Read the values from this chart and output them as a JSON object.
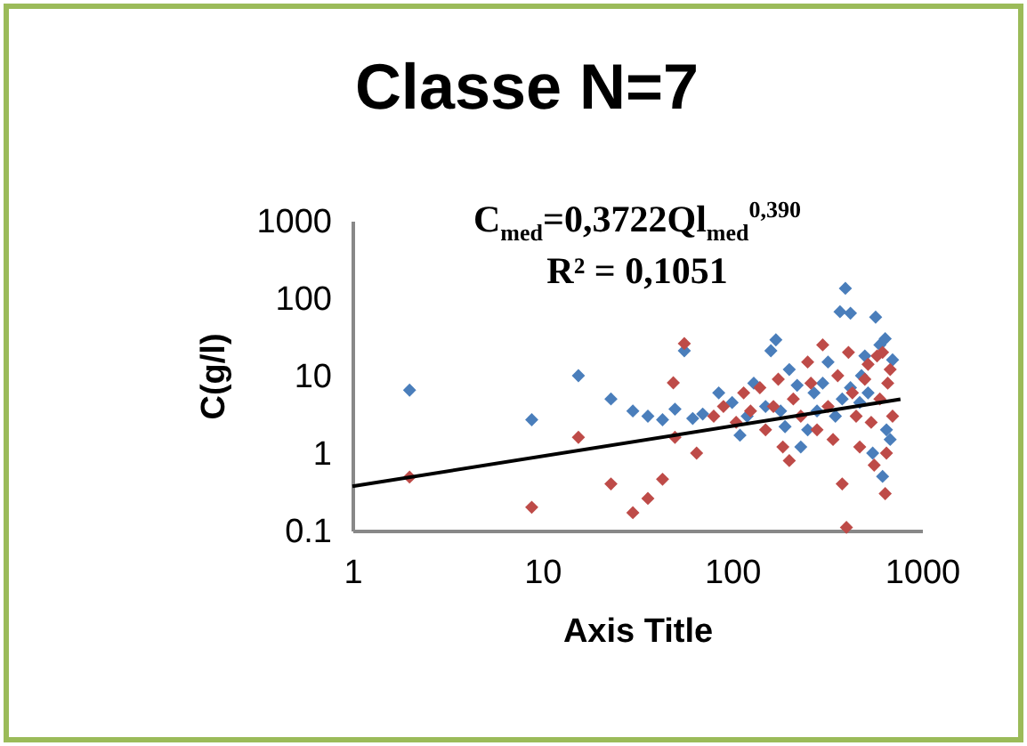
{
  "chart_data": {
    "type": "scatter",
    "title": "Classe N=7",
    "xlabel": "Axis Title",
    "ylabel": "C(g/l)",
    "annotations": [
      "C$_{med}$=0,3722Ql$_{med}$$^{0,390}$",
      "R² = 0,1051"
    ],
    "log": "xy",
    "grid": false,
    "marker": "diamond",
    "xlim": [
      1,
      1000
    ],
    "xticks": [
      1,
      10,
      100,
      1000
    ],
    "ylim": [
      0.1,
      1000
    ],
    "yticks": [
      0.1,
      1,
      10,
      100,
      1000
    ],
    "series": [
      {
        "color": "#4a7ebb",
        "x": [
          2,
          8.8,
          15.5,
          23,
          30,
          36,
          43,
          50,
          56,
          62,
          70,
          85,
          100,
          110,
          120,
          130,
          150,
          160,
          170,
          180,
          200,
          220,
          250,
          270,
          300,
          320,
          350,
          370,
          395,
          420,
          470,
          480,
          500,
          520,
          550,
          570,
          600,
          620,
          650,
          680,
          700,
          640,
          420,
          380,
          280,
          230,
          190
        ],
        "values": [
          6.5,
          2.7,
          10,
          5,
          3.5,
          3,
          2.7,
          3.7,
          21,
          2.8,
          3.2,
          6,
          4.5,
          1.7,
          3,
          8,
          4,
          21,
          29,
          3.5,
          12,
          7.5,
          2,
          6,
          8,
          15,
          3,
          67,
          134,
          64,
          4.5,
          10,
          18,
          6,
          1,
          57,
          25,
          0.5,
          2,
          1.5,
          16,
          30,
          7,
          5,
          3.5,
          1.2,
          2.2
        ]
      },
      {
        "color": "#be4b48",
        "x": [
          2,
          8.8,
          15.5,
          23,
          30,
          36,
          43,
          50,
          56,
          49,
          65,
          80,
          90,
          105,
          115,
          125,
          140,
          150,
          165,
          175,
          185,
          200,
          210,
          230,
          250,
          260,
          280,
          300,
          320,
          340,
          360,
          380,
          400,
          410,
          430,
          450,
          470,
          500,
          520,
          540,
          560,
          580,
          600,
          620,
          640,
          660,
          680,
          700,
          650
        ],
        "values": [
          0.49,
          0.2,
          1.6,
          0.4,
          0.17,
          0.26,
          0.46,
          1.6,
          26,
          8.1,
          1,
          3,
          4,
          2.5,
          6,
          3.5,
          7,
          2,
          4,
          9,
          1.2,
          0.8,
          5,
          3,
          15,
          8,
          2,
          25,
          4,
          1.5,
          10,
          0.4,
          0.11,
          20,
          6,
          3,
          1.2,
          9,
          14,
          2.5,
          0.7,
          18,
          5,
          20,
          0.3,
          8,
          12,
          3,
          1
        ]
      },
      {
        "type": "line",
        "color": "#000000",
        "marker": "none",
        "x": [
          1,
          770
        ],
        "values": [
          0.3722,
          4.95
        ]
      }
    ]
  }
}
